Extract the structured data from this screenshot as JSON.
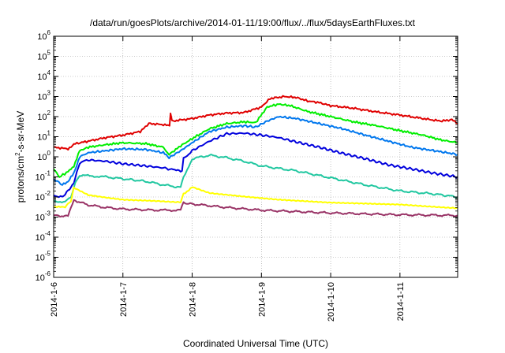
{
  "chart_data": {
    "type": "line",
    "title": "/data/run/goesPlots/archive/2014-01-11/19:00/flux/../flux/5daysEarthFluxes.txt",
    "xlabel": "Coordinated Universal Time (UTC)",
    "ylabel": "protons/cm2-s-sr-MeV",
    "ylabel_parts": {
      "pre": "protons/cm",
      "sup": "2",
      "post": "-s-sr-MeV"
    },
    "x_scale": "time",
    "x_unit": "day",
    "xlim": [
      "2014-01-06 00:00",
      "2014-01-11 20:00"
    ],
    "x_ticks": [
      "2014-1-6",
      "2014-1-7",
      "2014-1-8",
      "2014-1-9",
      "2014-1-10",
      "2014-1-11"
    ],
    "y_scale": "log",
    "ylim": [
      1e-06,
      1000000.0
    ],
    "y_ticks": [
      {
        "base": "10",
        "exp": "-6"
      },
      {
        "base": "10",
        "exp": "-5"
      },
      {
        "base": "10",
        "exp": "-4"
      },
      {
        "base": "10",
        "exp": "-3"
      },
      {
        "base": "10",
        "exp": "-2"
      },
      {
        "base": "10",
        "exp": "-1"
      },
      {
        "base": "10",
        "exp": "0"
      },
      {
        "base": "10",
        "exp": "1"
      },
      {
        "base": "10",
        "exp": "2"
      },
      {
        "base": "10",
        "exp": "3"
      },
      {
        "base": "10",
        "exp": "4"
      },
      {
        "base": "10",
        "exp": "5"
      },
      {
        "base": "10",
        "exp": "6"
      }
    ],
    "grid": true,
    "series": [
      {
        "color": "#e00000",
        "points": [
          [
            "2014-01-06 00:00",
            3.0
          ],
          [
            "2014-01-06 05:00",
            2.5
          ],
          [
            "2014-01-06 07:30",
            4.5
          ],
          [
            "2014-01-06 12:00",
            6.0
          ],
          [
            "2014-01-06 18:00",
            9.0
          ],
          [
            "2014-01-07 00:00",
            12
          ],
          [
            "2014-01-07 06:00",
            18
          ],
          [
            "2014-01-07 09:00",
            45
          ],
          [
            "2014-01-07 14:00",
            40
          ],
          [
            "2014-01-07 16:10",
            35
          ],
          [
            "2014-01-07 16:30",
            150
          ],
          [
            "2014-01-07 17:00",
            60
          ],
          [
            "2014-01-08 00:00",
            80
          ],
          [
            "2014-01-08 06:00",
            120
          ],
          [
            "2014-01-08 12:00",
            150
          ],
          [
            "2014-01-08 18:00",
            160
          ],
          [
            "2014-01-09 00:00",
            300
          ],
          [
            "2014-01-09 03:00",
            800
          ],
          [
            "2014-01-09 08:00",
            1000
          ],
          [
            "2014-01-09 12:00",
            900
          ],
          [
            "2014-01-09 16:00",
            600
          ],
          [
            "2014-01-09 20:00",
            500
          ],
          [
            "2014-01-10 00:00",
            350
          ],
          [
            "2014-01-10 08:00",
            260
          ],
          [
            "2014-01-10 16:00",
            170
          ],
          [
            "2014-01-11 00:00",
            120
          ],
          [
            "2014-01-11 08:00",
            80
          ],
          [
            "2014-01-11 14:00",
            60
          ],
          [
            "2014-01-11 18:00",
            70
          ],
          [
            "2014-01-11 20:00",
            45
          ]
        ]
      },
      {
        "color": "#00ee00",
        "points": [
          [
            "2014-01-06 00:00",
            0.25
          ],
          [
            "2014-01-06 02:00",
            0.1
          ],
          [
            "2014-01-06 05:00",
            0.18
          ],
          [
            "2014-01-06 07:00",
            0.35
          ],
          [
            "2014-01-06 09:00",
            2.0
          ],
          [
            "2014-01-06 12:00",
            3.0
          ],
          [
            "2014-01-06 18:00",
            4.0
          ],
          [
            "2014-01-07 00:00",
            5.0
          ],
          [
            "2014-01-07 08:00",
            4.5
          ],
          [
            "2014-01-07 14:00",
            3.0
          ],
          [
            "2014-01-07 16:00",
            1.3
          ],
          [
            "2014-01-07 20:00",
            3.5
          ],
          [
            "2014-01-08 00:00",
            8.0
          ],
          [
            "2014-01-08 06:00",
            25
          ],
          [
            "2014-01-08 12:00",
            45
          ],
          [
            "2014-01-08 18:00",
            55
          ],
          [
            "2014-01-08 22:00",
            50
          ],
          [
            "2014-01-09 02:00",
            300
          ],
          [
            "2014-01-09 06:00",
            420
          ],
          [
            "2014-01-09 10:00",
            350
          ],
          [
            "2014-01-09 16:00",
            180
          ],
          [
            "2014-01-10 00:00",
            100
          ],
          [
            "2014-01-10 08:00",
            55
          ],
          [
            "2014-01-10 16:00",
            35
          ],
          [
            "2014-01-11 00:00",
            20
          ],
          [
            "2014-01-11 08:00",
            12
          ],
          [
            "2014-01-11 14:00",
            7
          ],
          [
            "2014-01-11 20:00",
            5
          ]
        ]
      },
      {
        "color": "#0077ee",
        "points": [
          [
            "2014-01-06 00:00",
            0.08
          ],
          [
            "2014-01-06 03:00",
            0.04
          ],
          [
            "2014-01-06 05:00",
            0.06
          ],
          [
            "2014-01-06 07:00",
            0.15
          ],
          [
            "2014-01-06 09:00",
            1.0
          ],
          [
            "2014-01-06 12:00",
            1.6
          ],
          [
            "2014-01-06 18:00",
            2.0
          ],
          [
            "2014-01-07 00:00",
            2.5
          ],
          [
            "2014-01-07 08:00",
            2.3
          ],
          [
            "2014-01-07 14:00",
            1.6
          ],
          [
            "2014-01-07 16:00",
            0.9
          ],
          [
            "2014-01-07 20:00",
            2.0
          ],
          [
            "2014-01-08 00:00",
            5.0
          ],
          [
            "2014-01-08 06:00",
            18
          ],
          [
            "2014-01-08 12:00",
            30
          ],
          [
            "2014-01-08 18:00",
            35
          ],
          [
            "2014-01-08 22:00",
            30
          ],
          [
            "2014-01-09 02:00",
            60
          ],
          [
            "2014-01-09 06:00",
            100
          ],
          [
            "2014-01-09 12:00",
            80
          ],
          [
            "2014-01-09 20:00",
            45
          ],
          [
            "2014-01-10 04:00",
            25
          ],
          [
            "2014-01-10 12:00",
            12
          ],
          [
            "2014-01-10 20:00",
            6
          ],
          [
            "2014-01-11 04:00",
            3.0
          ],
          [
            "2014-01-11 12:00",
            2.0
          ],
          [
            "2014-01-11 20:00",
            1.3
          ]
        ]
      },
      {
        "color": "#0000dd",
        "points": [
          [
            "2014-01-06 00:00",
            0.012
          ],
          [
            "2014-01-06 03:00",
            0.01
          ],
          [
            "2014-01-06 05:00",
            0.02
          ],
          [
            "2014-01-06 07:00",
            0.05
          ],
          [
            "2014-01-06 09:00",
            0.5
          ],
          [
            "2014-01-06 12:00",
            0.7
          ],
          [
            "2014-01-06 18:00",
            0.6
          ],
          [
            "2014-01-07 00:00",
            0.45
          ],
          [
            "2014-01-07 08:00",
            0.35
          ],
          [
            "2014-01-07 14:00",
            0.28
          ],
          [
            "2014-01-07 18:00",
            0.22
          ],
          [
            "2014-01-07 20:30",
            0.2
          ],
          [
            "2014-01-07 21:00",
            0.8
          ],
          [
            "2014-01-08 00:00",
            2.0
          ],
          [
            "2014-01-08 06:00",
            6.0
          ],
          [
            "2014-01-08 12:00",
            14
          ],
          [
            "2014-01-08 18:00",
            15
          ],
          [
            "2014-01-09 00:00",
            12
          ],
          [
            "2014-01-09 06:00",
            9.0
          ],
          [
            "2014-01-09 12:00",
            5.5
          ],
          [
            "2014-01-09 20:00",
            3.0
          ],
          [
            "2014-01-10 04:00",
            1.5
          ],
          [
            "2014-01-10 12:00",
            0.8
          ],
          [
            "2014-01-10 20:00",
            0.4
          ],
          [
            "2014-01-11 04:00",
            0.25
          ],
          [
            "2014-01-11 12:00",
            0.15
          ],
          [
            "2014-01-11 20:00",
            0.1
          ]
        ]
      },
      {
        "color": "#20c7a0",
        "points": [
          [
            "2014-01-06 00:00",
            0.006
          ],
          [
            "2014-01-06 04:00",
            0.006
          ],
          [
            "2014-01-06 06:00",
            0.01
          ],
          [
            "2014-01-06 07:30",
            0.05
          ],
          [
            "2014-01-06 09:00",
            0.12
          ],
          [
            "2014-01-06 18:00",
            0.1
          ],
          [
            "2014-01-07 00:00",
            0.08
          ],
          [
            "2014-01-07 08:00",
            0.06
          ],
          [
            "2014-01-07 14:00",
            0.04
          ],
          [
            "2014-01-07 20:00",
            0.03
          ],
          [
            "2014-01-07 21:00",
            0.1
          ],
          [
            "2014-01-08 00:00",
            0.8
          ],
          [
            "2014-01-08 06:00",
            1.2
          ],
          [
            "2014-01-08 12:00",
            0.9
          ],
          [
            "2014-01-08 18:00",
            0.6
          ],
          [
            "2014-01-09 00:00",
            0.35
          ],
          [
            "2014-01-09 12:00",
            0.2
          ],
          [
            "2014-01-10 00:00",
            0.09
          ],
          [
            "2014-01-10 12:00",
            0.04
          ],
          [
            "2014-01-11 00:00",
            0.02
          ],
          [
            "2014-01-11 12:00",
            0.014
          ],
          [
            "2014-01-11 20:00",
            0.01
          ]
        ]
      },
      {
        "color": "#ffff00",
        "points": [
          [
            "2014-01-06 00:00",
            0.003
          ],
          [
            "2014-01-06 04:00",
            0.003
          ],
          [
            "2014-01-06 06:00",
            0.006
          ],
          [
            "2014-01-06 07:00",
            0.03
          ],
          [
            "2014-01-06 12:00",
            0.012
          ],
          [
            "2014-01-06 18:00",
            0.009
          ],
          [
            "2014-01-07 00:00",
            0.007
          ],
          [
            "2014-01-07 12:00",
            0.006
          ],
          [
            "2014-01-07 20:00",
            0.006
          ],
          [
            "2014-01-07 21:00",
            0.015
          ],
          [
            "2014-01-08 00:00",
            0.03
          ],
          [
            "2014-01-08 06:00",
            0.015
          ],
          [
            "2014-01-08 18:00",
            0.01
          ],
          [
            "2014-01-09 06:00",
            0.007
          ],
          [
            "2014-01-10 00:00",
            0.005
          ],
          [
            "2014-01-11 00:00",
            0.004
          ],
          [
            "2014-01-11 20:00",
            0.003
          ]
        ]
      },
      {
        "color": "#993366",
        "points": [
          [
            "2014-01-06 00:00",
            0.0012
          ],
          [
            "2014-01-06 05:00",
            0.0011
          ],
          [
            "2014-01-06 07:00",
            0.007
          ],
          [
            "2014-01-06 12:00",
            0.004
          ],
          [
            "2014-01-06 18:00",
            0.003
          ],
          [
            "2014-01-07 00:00",
            0.0025
          ],
          [
            "2014-01-07 12:00",
            0.0022
          ],
          [
            "2014-01-07 20:00",
            0.0022
          ],
          [
            "2014-01-07 21:00",
            0.005
          ],
          [
            "2014-01-08 00:00",
            0.0045
          ],
          [
            "2014-01-08 12:00",
            0.003
          ],
          [
            "2014-01-09 00:00",
            0.0022
          ],
          [
            "2014-01-10 00:00",
            0.0016
          ],
          [
            "2014-01-11 00:00",
            0.0013
          ],
          [
            "2014-01-11 20:00",
            0.0012
          ]
        ]
      }
    ]
  }
}
